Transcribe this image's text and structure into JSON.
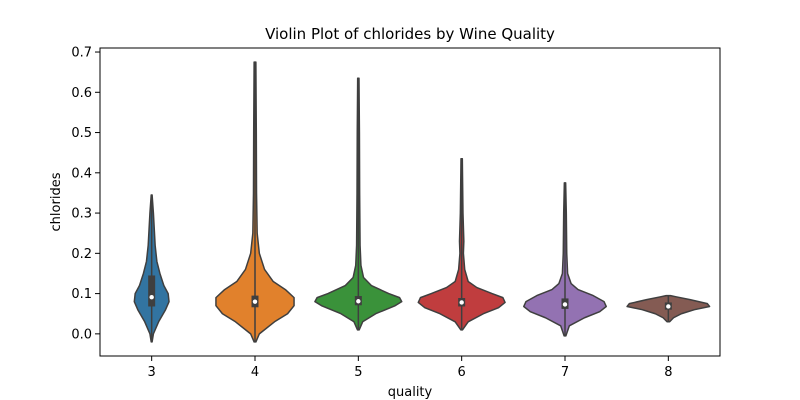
{
  "chart_data": {
    "type": "violin",
    "title": "Violin Plot of chlorides by Wine Quality",
    "xlabel": "quality",
    "ylabel": "chlorides",
    "categories": [
      "3",
      "4",
      "5",
      "6",
      "7",
      "8"
    ],
    "ylim": [
      -0.055,
      0.71
    ],
    "yticks": [
      "0.0",
      "0.1",
      "0.2",
      "0.3",
      "0.4",
      "0.5",
      "0.6",
      "0.7"
    ],
    "grid": false,
    "series": [
      {
        "category": "3",
        "color": "#3274a1",
        "min": -0.02,
        "max": 0.345,
        "q1": 0.068,
        "median": 0.091,
        "q3": 0.145,
        "profile": [
          [
            -0.02,
            0.01
          ],
          [
            0.0,
            0.04
          ],
          [
            0.03,
            0.16
          ],
          [
            0.06,
            0.32
          ],
          [
            0.08,
            0.4
          ],
          [
            0.1,
            0.38
          ],
          [
            0.12,
            0.28
          ],
          [
            0.15,
            0.19
          ],
          [
            0.18,
            0.12
          ],
          [
            0.22,
            0.08
          ],
          [
            0.26,
            0.06
          ],
          [
            0.3,
            0.04
          ],
          [
            0.345,
            0.01
          ]
        ]
      },
      {
        "category": "4",
        "color": "#e1812c",
        "min": -0.02,
        "max": 0.675,
        "q1": 0.066,
        "median": 0.08,
        "q3": 0.095,
        "profile": [
          [
            -0.02,
            0.02
          ],
          [
            0.0,
            0.1
          ],
          [
            0.03,
            0.45
          ],
          [
            0.05,
            0.75
          ],
          [
            0.07,
            0.9
          ],
          [
            0.09,
            0.9
          ],
          [
            0.11,
            0.7
          ],
          [
            0.13,
            0.42
          ],
          [
            0.16,
            0.22
          ],
          [
            0.2,
            0.1
          ],
          [
            0.25,
            0.05
          ],
          [
            0.35,
            0.035
          ],
          [
            0.5,
            0.03
          ],
          [
            0.675,
            0.02
          ]
        ]
      },
      {
        "category": "5",
        "color": "#3a923a",
        "min": 0.01,
        "max": 0.635,
        "q1": 0.071,
        "median": 0.081,
        "q3": 0.094,
        "profile": [
          [
            0.01,
            0.02
          ],
          [
            0.03,
            0.1
          ],
          [
            0.05,
            0.4
          ],
          [
            0.07,
            0.85
          ],
          [
            0.08,
            1.0
          ],
          [
            0.09,
            0.95
          ],
          [
            0.1,
            0.7
          ],
          [
            0.12,
            0.3
          ],
          [
            0.14,
            0.12
          ],
          [
            0.17,
            0.06
          ],
          [
            0.22,
            0.04
          ],
          [
            0.35,
            0.03
          ],
          [
            0.5,
            0.025
          ],
          [
            0.635,
            0.015
          ]
        ]
      },
      {
        "category": "6",
        "color": "#c03d3e",
        "min": 0.01,
        "max": 0.435,
        "q1": 0.068,
        "median": 0.078,
        "q3": 0.089,
        "profile": [
          [
            0.01,
            0.02
          ],
          [
            0.03,
            0.15
          ],
          [
            0.05,
            0.5
          ],
          [
            0.065,
            0.85
          ],
          [
            0.078,
            1.0
          ],
          [
            0.09,
            0.95
          ],
          [
            0.1,
            0.7
          ],
          [
            0.115,
            0.35
          ],
          [
            0.13,
            0.15
          ],
          [
            0.16,
            0.07
          ],
          [
            0.2,
            0.04
          ],
          [
            0.23,
            0.05
          ],
          [
            0.3,
            0.03
          ],
          [
            0.435,
            0.015
          ]
        ]
      },
      {
        "category": "7",
        "color": "#9372b2",
        "min": -0.005,
        "max": 0.375,
        "q1": 0.062,
        "median": 0.073,
        "q3": 0.088,
        "profile": [
          [
            -0.005,
            0.02
          ],
          [
            0.02,
            0.1
          ],
          [
            0.04,
            0.45
          ],
          [
            0.055,
            0.8
          ],
          [
            0.068,
            0.95
          ],
          [
            0.08,
            0.9
          ],
          [
            0.095,
            0.65
          ],
          [
            0.11,
            0.3
          ],
          [
            0.125,
            0.14
          ],
          [
            0.15,
            0.06
          ],
          [
            0.2,
            0.04
          ],
          [
            0.3,
            0.03
          ],
          [
            0.375,
            0.015
          ]
        ]
      },
      {
        "category": "8",
        "color": "#845b53",
        "min": 0.03,
        "max": 0.095,
        "q1": 0.06,
        "median": 0.068,
        "q3": 0.078,
        "profile": [
          [
            0.03,
            0.03
          ],
          [
            0.04,
            0.12
          ],
          [
            0.05,
            0.3
          ],
          [
            0.06,
            0.6
          ],
          [
            0.068,
            0.95
          ],
          [
            0.075,
            0.9
          ],
          [
            0.085,
            0.5
          ],
          [
            0.092,
            0.18
          ],
          [
            0.095,
            0.05
          ]
        ]
      }
    ]
  }
}
